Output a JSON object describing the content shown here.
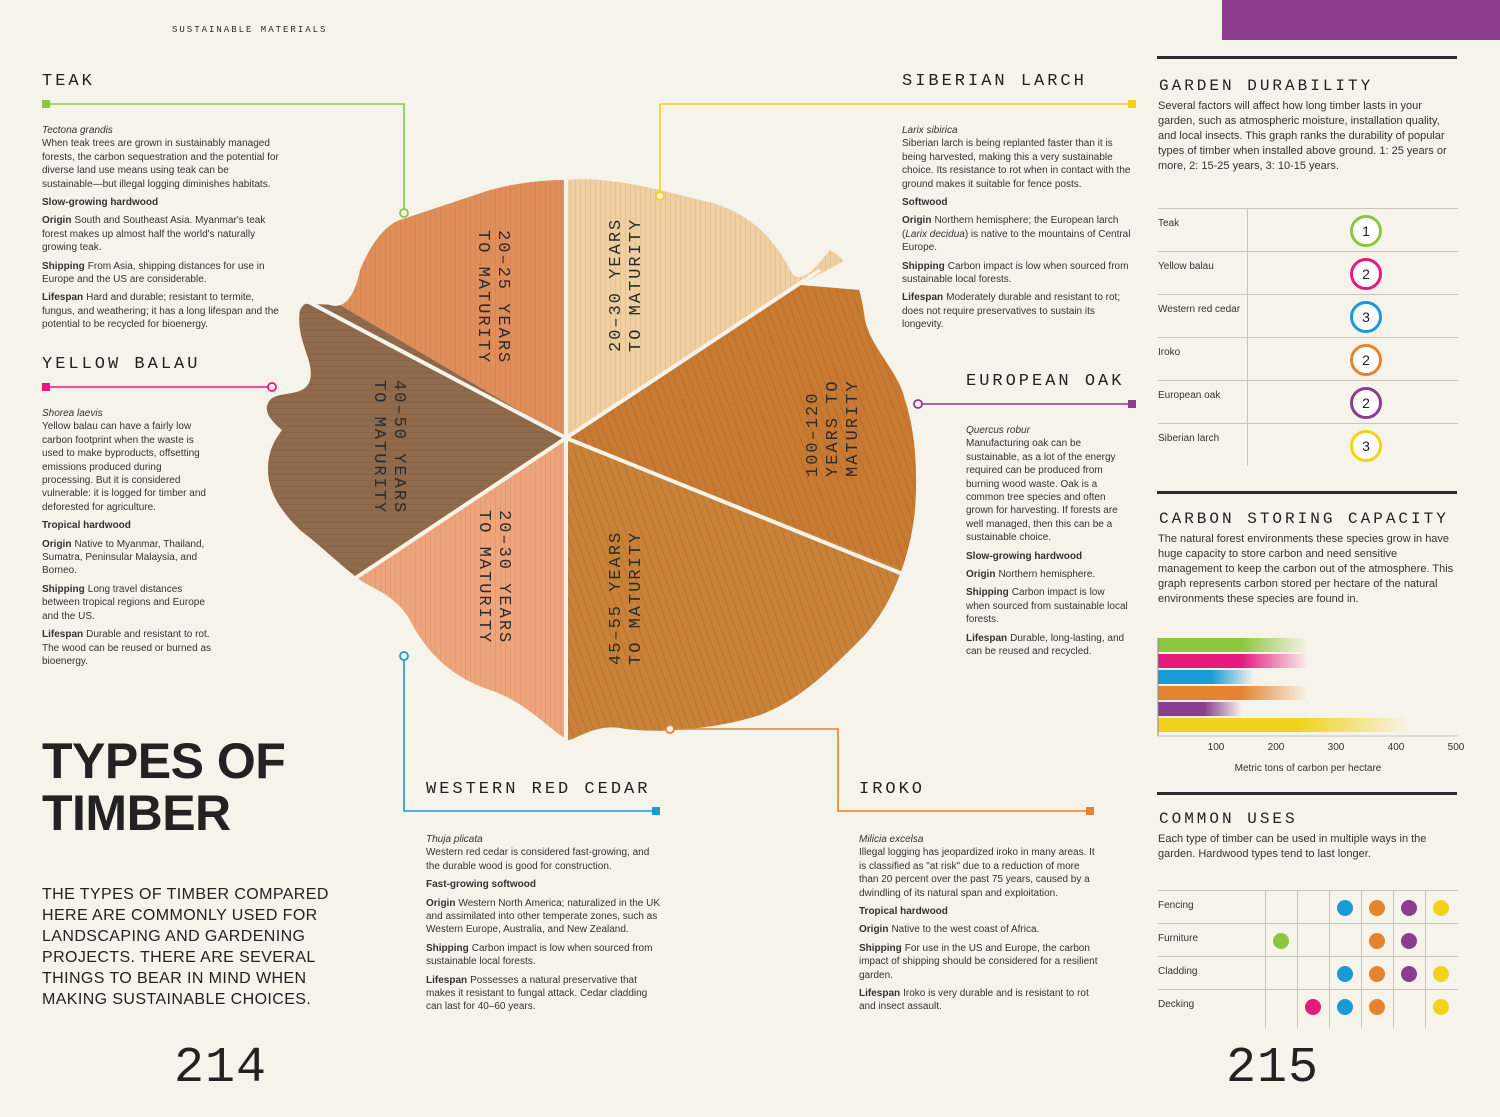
{
  "running_head": "SUSTAINABLE MATERIALS",
  "colors": {
    "teak": "#8cc63f",
    "yellow_balau": "#e6197d",
    "western_red_cedar": "#1a9ad6",
    "iroko": "#e6832f",
    "european_oak": "#8b3d8e",
    "siberian_larch": "#f2d21a"
  },
  "wedges": [
    {
      "label": "20–25 YEARS TO MATURITY",
      "line1": "20–25 YEARS",
      "line2": "TO MATURITY"
    },
    {
      "label": "20–30 YEARS TO MATURITY",
      "line1": "20–30 YEARS",
      "line2": "TO MATURITY"
    },
    {
      "label": "100–120 YEARS TO MATURITY",
      "line1": "100–120",
      "line2": "YEARS TO",
      "line3": "MATURITY"
    },
    {
      "label": "45–55 YEARS TO MATURITY",
      "line1": "45–55 YEARS",
      "line2": "TO MATURITY"
    },
    {
      "label": "20–30 YEARS TO MATURITY",
      "line1": "20–30 YEARS",
      "line2": "TO MATURITY"
    },
    {
      "label": "40–50 YEARS TO MATURITY",
      "line1": "40–50 YEARS",
      "line2": "TO MATURITY"
    }
  ],
  "teak": {
    "title": "TEAK",
    "latin": "Tectona grandis",
    "intro": "When teak trees are grown in sustainably managed forests, the carbon sequestration and the potential for diverse land use means using teak can be sustainable—but illegal logging diminishes habitats.",
    "type": "Slow-growing hardwood",
    "origin_key": "Origin",
    "origin": "South and Southeast Asia. Myanmar's teak forest makes up almost half the world's naturally growing teak.",
    "shipping_key": "Shipping",
    "shipping": "From Asia, shipping distances for use in Europe and the US are considerable.",
    "lifespan_key": "Lifespan",
    "lifespan": "Hard and durable; resistant to termite, fungus, and weathering; it has a long lifespan and the potential to be recycled for bioenergy."
  },
  "yellow_balau": {
    "title": "YELLOW BALAU",
    "latin": "Shorea laevis",
    "intro": "Yellow balau can have a fairly low carbon footprint when the waste is used to make byproducts, offsetting emissions produced during processing. But it is considered vulnerable: it is logged for timber and deforested for agriculture.",
    "type": "Tropical hardwood",
    "origin_key": "Origin",
    "origin": "Native to Myanmar, Thailand, Sumatra, Peninsular Malaysia, and Borneo.",
    "shipping_key": "Shipping",
    "shipping": "Long travel distances between tropical regions and Europe and the US.",
    "lifespan_key": "Lifespan",
    "lifespan": "Durable and resistant to rot. The wood can be reused or burned as bioenergy."
  },
  "siberian_larch": {
    "title": "SIBERIAN LARCH",
    "latin": "Larix sibirica",
    "intro": "Siberian larch is being replanted faster than it is being harvested, making this a very sustainable choice. Its resistance to rot when in contact with the ground makes it suitable for fence posts.",
    "type": "Softwood",
    "origin_key": "Origin",
    "origin_a": "Northern hemisphere; the European larch (",
    "origin_latin": "Larix decidua",
    "origin_b": ") is native to the mountains of Central Europe.",
    "shipping_key": "Shipping",
    "shipping": "Carbon impact is low when sourced from sustainable local forests.",
    "lifespan_key": "Lifespan",
    "lifespan": "Moderately durable and resistant to rot; does not require preservatives to sustain its longevity."
  },
  "european_oak": {
    "title": "EUROPEAN OAK",
    "latin": "Quercus robur",
    "intro": "Manufacturing oak can be sustainable, as a lot of the energy required can be produced from burning wood waste. Oak is a common tree species and often grown for harvesting. If forests are well managed, then this can be a sustainable choice.",
    "type": "Slow-growing hardwood",
    "origin_key": "Origin",
    "origin": "Northern hemisphere.",
    "shipping_key": "Shipping",
    "shipping": "Carbon impact is low when sourced from sustainable local forests.",
    "lifespan_key": "Lifespan",
    "lifespan": "Durable, long-lasting, and can be reused and recycled."
  },
  "western_red_cedar": {
    "title": "WESTERN RED CEDAR",
    "latin": "Thuja plicata",
    "intro": "Western red cedar is considered fast-growing, and the durable wood is good for construction.",
    "type": "Fast-growing softwood",
    "origin_key": "Origin",
    "origin": "Western North America; naturalized in the UK and assimilated into other temperate zones, such as Western Europe, Australia, and New Zealand.",
    "shipping_key": "Shipping",
    "shipping": "Carbon impact is low when sourced from sustainable local forests.",
    "lifespan_key": "Lifespan",
    "lifespan": "Possesses a natural preservative that makes it resistant to fungal attack. Cedar cladding can last for 40–60 years."
  },
  "iroko": {
    "title": "IROKO",
    "latin": "Milicia excelsa",
    "intro": "Illegal logging has jeopardized iroko in many areas. It is classified as \"at risk\" due to a reduction of more than 20 percent over the past 75 years, caused by a dwindling of its natural span and exploitation.",
    "type": "Tropical hardwood",
    "origin_key": "Origin",
    "origin": "Native to the west coast of Africa.",
    "shipping_key": "Shipping",
    "shipping": "For use in the US and Europe, the carbon impact of shipping should be considered for a resilient garden.",
    "lifespan_key": "Lifespan",
    "lifespan": "Iroko is very durable and is resistant to rot and insect assault."
  },
  "main_title_line1": "TYPES OF",
  "main_title_line2": "TIMBER",
  "intro_text": "THE TYPES OF TIMBER COMPARED HERE ARE COMMONLY USED FOR LANDSCAPING AND GARDENING PROJECTS. THERE ARE SEVERAL THINGS TO BEAR IN MIND WHEN MAKING SUSTAINABLE CHOICES.",
  "page_left": "214",
  "page_right": "215",
  "garden_durability": {
    "title": "GARDEN DURABILITY",
    "desc": "Several factors will affect how long timber lasts in your garden, such as atmospheric moisture, installation quality, and local insects. This graph ranks the durability of popular types of timber when installed above ground. 1: 25 years or more, 2: 15-25 years, 3: 10-15 years.",
    "rows": [
      {
        "name": "Teak",
        "rank": "1",
        "color": "#8cc63f"
      },
      {
        "name": "Yellow balau",
        "rank": "2",
        "color": "#e6197d"
      },
      {
        "name": "Western red cedar",
        "rank": "3",
        "color": "#1a9ad6"
      },
      {
        "name": "Iroko",
        "rank": "2",
        "color": "#e6832f"
      },
      {
        "name": "European oak",
        "rank": "2",
        "color": "#8b3d8e"
      },
      {
        "name": "Siberian larch",
        "rank": "3",
        "color": "#f2d21a"
      }
    ]
  },
  "carbon": {
    "title": "CARBON STORING CAPACITY",
    "desc": "The natural forest environments these species grow in have huge capacity to store carbon and need sensitive management to keep the carbon out of the atmosphere. This graph represents carbon stored per hectare of the natural environments these species are found in.",
    "xlabel": "Metric tons of carbon per hectare",
    "ticks": [
      "100",
      "200",
      "300",
      "400",
      "500"
    ]
  },
  "chart_data": {
    "type": "bar",
    "orientation": "horizontal",
    "title": "CARBON STORING CAPACITY",
    "xlabel": "Metric tons of carbon per hectare",
    "xlim": [
      0,
      500
    ],
    "categories": [
      "Teak",
      "Yellow balau",
      "Western red cedar",
      "Iroko",
      "European oak",
      "Siberian larch"
    ],
    "values": [
      250,
      250,
      160,
      250,
      140,
      420
    ],
    "colors": [
      "#8cc63f",
      "#e6197d",
      "#1a9ad6",
      "#e6832f",
      "#8b3d8e",
      "#f2d21a"
    ]
  },
  "common_uses": {
    "title": "COMMON USES",
    "desc": "Each type of timber can be used in multiple ways in the garden. Hardwood types tend to last longer.",
    "uses": [
      "Fencing",
      "Furniture",
      "Cladding",
      "Decking"
    ],
    "species_colors": [
      "#8cc63f",
      "#e6197d",
      "#1a9ad6",
      "#e6832f",
      "#8b3d8e",
      "#f2d21a"
    ],
    "matrix": [
      [
        0,
        0,
        1,
        1,
        1,
        1
      ],
      [
        1,
        0,
        0,
        1,
        1,
        0
      ],
      [
        0,
        0,
        1,
        1,
        1,
        1
      ],
      [
        0,
        1,
        1,
        1,
        0,
        1
      ]
    ]
  }
}
